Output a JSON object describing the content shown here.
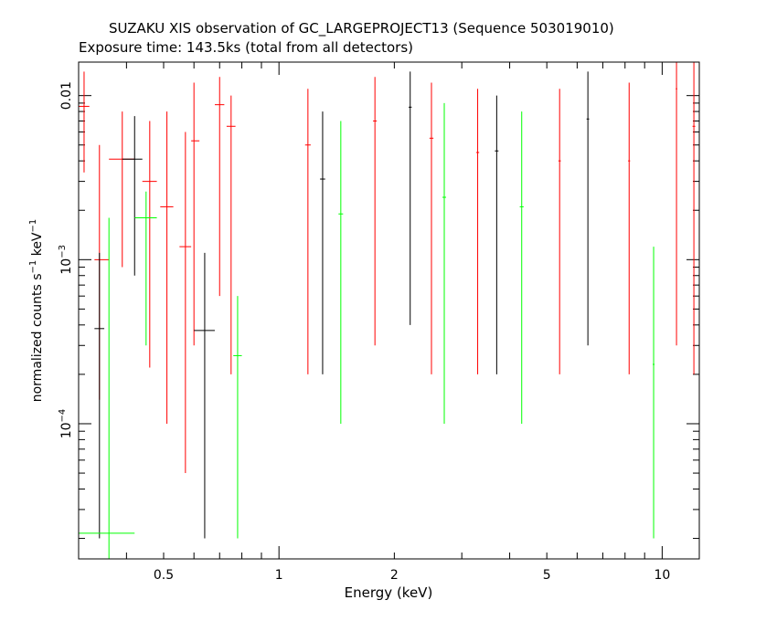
{
  "chart_data": {
    "type": "scatter",
    "title": "SUZAKU XIS observation of GC_LARGEPROJECT13 (Sequence 503019010)",
    "subtitle": "Exposure time: 143.5ks (total from all detectors)",
    "xlabel": "Energy (keV)",
    "ylabel": "normalized counts s^-1 keV^-1",
    "ylabel_parts": {
      "base": "normalized counts s",
      "sup1": "−1",
      "mid": " keV",
      "sup2": "−1"
    },
    "x_scale": "log",
    "y_scale": "log",
    "xlim": [
      0.3,
      12.5
    ],
    "ylim": [
      1.5e-05,
      0.016
    ],
    "x_ticks": [
      {
        "value": 0.5,
        "label": "0.5"
      },
      {
        "value": 1,
        "label": "1"
      },
      {
        "value": 2,
        "label": "2"
      },
      {
        "value": 5,
        "label": "5"
      },
      {
        "value": 10,
        "label": "10"
      }
    ],
    "y_ticks": [
      {
        "value": 0.0001,
        "base": "10",
        "exp": "−4"
      },
      {
        "value": 0.001,
        "base": "10",
        "exp": "−3"
      },
      {
        "value": 0.01,
        "label": "0.01"
      }
    ],
    "grid": false,
    "series": [
      {
        "color": "#ff0000",
        "points": [
          {
            "x": 0.31,
            "y": 0.0086,
            "xerr": [
              0.3,
              0.32
            ],
            "yerr": [
              0.0034,
              0.014
            ]
          },
          {
            "x": 0.34,
            "y": 0.001,
            "xerr": [
              0.33,
              0.36
            ],
            "yerr": [
              0.00014,
              0.005
            ]
          },
          {
            "x": 0.39,
            "y": 0.0041,
            "xerr": [
              0.36,
              0.42
            ],
            "yerr": [
              0.0009,
              0.008
            ]
          },
          {
            "x": 0.46,
            "y": 0.003,
            "xerr": [
              0.44,
              0.48
            ],
            "yerr": [
              0.00022,
              0.007
            ]
          },
          {
            "x": 0.51,
            "y": 0.0021,
            "xerr": [
              0.49,
              0.53
            ],
            "yerr": [
              0.0001,
              0.008
            ]
          },
          {
            "x": 0.57,
            "y": 0.0012,
            "xerr": [
              0.55,
              0.59
            ],
            "yerr": [
              5e-05,
              0.006
            ]
          },
          {
            "x": 0.6,
            "y": 0.0053,
            "xerr": [
              0.59,
              0.62
            ],
            "yerr": [
              0.0003,
              0.012
            ]
          },
          {
            "x": 0.7,
            "y": 0.0088,
            "xerr": [
              0.68,
              0.72
            ],
            "yerr": [
              0.0006,
              0.013
            ]
          },
          {
            "x": 0.75,
            "y": 0.0065,
            "xerr": [
              0.73,
              0.77
            ],
            "yerr": [
              0.0002,
              0.01
            ]
          },
          {
            "x": 1.19,
            "y": 0.005,
            "xerr": [
              1.17,
              1.21
            ],
            "yerr": [
              0.0002,
              0.011
            ]
          },
          {
            "x": 1.78,
            "y": 0.007,
            "xerr": [
              1.76,
              1.8
            ],
            "yerr": [
              0.0003,
              0.013
            ]
          },
          {
            "x": 2.5,
            "y": 0.0055,
            "xerr": [
              2.47,
              2.53
            ],
            "yerr": [
              0.0002,
              0.012
            ]
          },
          {
            "x": 3.3,
            "y": 0.0045,
            "xerr": [
              3.27,
              3.33
            ],
            "yerr": [
              0.0002,
              0.011
            ]
          },
          {
            "x": 5.4,
            "y": 0.004,
            "xerr": [
              5.36,
              5.44
            ],
            "yerr": [
              0.0002,
              0.011
            ]
          },
          {
            "x": 8.2,
            "y": 0.004,
            "xerr": [
              8.15,
              8.25
            ],
            "yerr": [
              0.0002,
              0.012
            ]
          },
          {
            "x": 10.9,
            "y": 0.011,
            "xerr": [
              10.85,
              10.95
            ],
            "yerr": [
              0.0003,
              0.016
            ]
          },
          {
            "x": 12.1,
            "y": 0.0065,
            "xerr": [
              12.0,
              12.2
            ],
            "yerr": [
              0.0002,
              0.016
            ]
          }
        ]
      },
      {
        "color": "#000000",
        "points": [
          {
            "x": 0.34,
            "y": 0.00038,
            "xerr": [
              0.33,
              0.35
            ],
            "yerr": [
              2e-05,
              0.0011
            ]
          },
          {
            "x": 0.42,
            "y": 0.0041,
            "xerr": [
              0.39,
              0.44
            ],
            "yerr": [
              0.0008,
              0.0075
            ]
          },
          {
            "x": 0.64,
            "y": 0.00037,
            "xerr": [
              0.6,
              0.68
            ],
            "yerr": [
              2e-05,
              0.0011
            ]
          },
          {
            "x": 1.3,
            "y": 0.0031,
            "xerr": [
              1.28,
              1.32
            ],
            "yerr": [
              0.0002,
              0.008
            ]
          },
          {
            "x": 2.2,
            "y": 0.0085,
            "xerr": [
              2.18,
              2.22
            ],
            "yerr": [
              0.0004,
              0.014
            ]
          },
          {
            "x": 3.7,
            "y": 0.0046,
            "xerr": [
              3.66,
              3.74
            ],
            "yerr": [
              0.0002,
              0.01
            ]
          },
          {
            "x": 6.4,
            "y": 0.0072,
            "xerr": [
              6.35,
              6.45
            ],
            "yerr": [
              0.0003,
              0.014
            ]
          }
        ]
      },
      {
        "color": "#00ff00",
        "points": [
          {
            "x": 0.36,
            "y": 2.15e-05,
            "xerr": [
              0.3,
              0.42
            ],
            "yerr": [
              1.5e-05,
              0.0018
            ]
          },
          {
            "x": 0.45,
            "y": 0.0018,
            "xerr": [
              0.42,
              0.48
            ],
            "yerr": [
              0.0003,
              0.0026
            ]
          },
          {
            "x": 0.78,
            "y": 0.00026,
            "xerr": [
              0.76,
              0.8
            ],
            "yerr": [
              2e-05,
              0.0006
            ]
          },
          {
            "x": 1.45,
            "y": 0.0019,
            "xerr": [
              1.43,
              1.47
            ],
            "yerr": [
              0.0001,
              0.007
            ]
          },
          {
            "x": 2.7,
            "y": 0.0024,
            "xerr": [
              2.67,
              2.73
            ],
            "yerr": [
              0.0001,
              0.009
            ]
          },
          {
            "x": 4.3,
            "y": 0.0021,
            "xerr": [
              4.25,
              4.35
            ],
            "yerr": [
              0.0001,
              0.008
            ]
          },
          {
            "x": 9.5,
            "y": 0.00023,
            "xerr": [
              9.45,
              9.55
            ],
            "yerr": [
              2e-05,
              0.0012
            ]
          }
        ]
      }
    ]
  }
}
